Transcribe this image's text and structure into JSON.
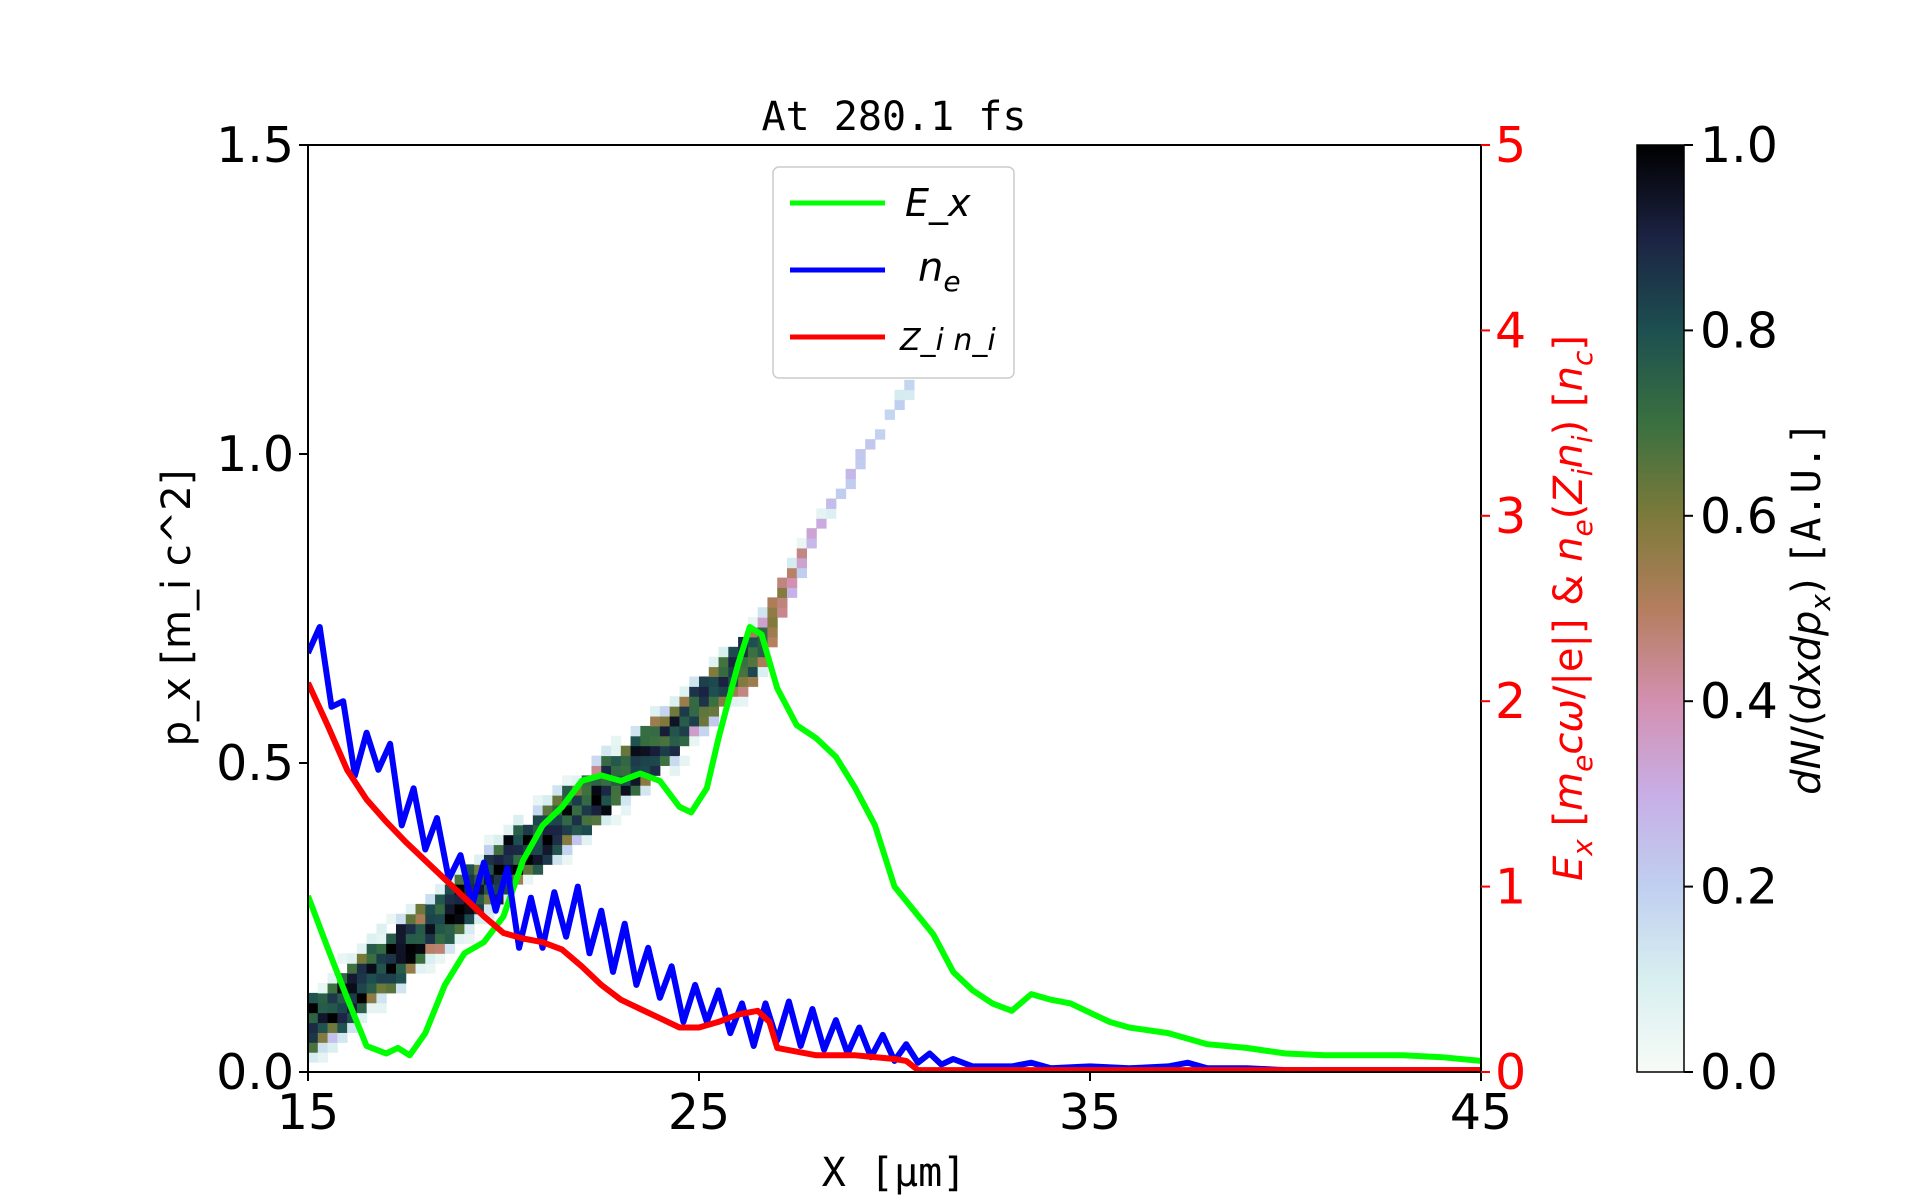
{
  "chart_data": {
    "type": "line",
    "title": "At 280.1 fs",
    "xlabel": "X [μm]",
    "ylabel_left": "p_x [m_i c^2]",
    "ylabel_right": "E_x [m_e cω/|e|] & n_e(Z_i n_i) [n_c]",
    "colorbar_label": "dN/(dxdp_x) [A.U.]",
    "xlim": [
      15,
      45
    ],
    "ylim_left": [
      0,
      1.5
    ],
    "ylim_right": [
      0,
      5
    ],
    "colorbar_lim": [
      0,
      1
    ],
    "xticks": [
      "15",
      "25",
      "35",
      "45"
    ],
    "xtick_values": [
      15,
      25,
      35,
      45
    ],
    "yticks_left": [
      "0.0",
      "0.5",
      "1.0",
      "1.5"
    ],
    "ytick_left_values": [
      0,
      0.5,
      1.0,
      1.5
    ],
    "yticks_right": [
      "0",
      "1",
      "2",
      "3",
      "4",
      "5"
    ],
    "ytick_right_values": [
      0,
      1,
      2,
      3,
      4,
      5
    ],
    "colorbar_ticks": [
      "0.0",
      "0.2",
      "0.4",
      "0.6",
      "0.8",
      "1.0"
    ],
    "colorbar_tick_values": [
      0,
      0.2,
      0.4,
      0.6,
      0.8,
      1.0
    ],
    "legend": {
      "placement": "upper-center",
      "entries": [
        "E_x",
        "n_e",
        "Z_i n_i"
      ]
    },
    "series": [
      {
        "name": "E_x",
        "color": "#00ff00",
        "axis": "right",
        "x": [
          15,
          15.5,
          16,
          16.5,
          17,
          17.3,
          17.6,
          18,
          18.5,
          19,
          19.5,
          20,
          20.5,
          21,
          21.5,
          22,
          22.5,
          23,
          23.5,
          24,
          24.5,
          24.8,
          25.2,
          25.5,
          26,
          26.3,
          26.6,
          27,
          27.5,
          28,
          28.5,
          29,
          29.5,
          30,
          30.5,
          31,
          31.5,
          32,
          32.5,
          33,
          33.5,
          34,
          34.5,
          35,
          35.5,
          36,
          37,
          38,
          39,
          40,
          41,
          42,
          43,
          44,
          45
        ],
        "y": [
          0.95,
          0.67,
          0.4,
          0.14,
          0.1,
          0.13,
          0.09,
          0.21,
          0.47,
          0.64,
          0.7,
          0.84,
          1.14,
          1.33,
          1.43,
          1.57,
          1.6,
          1.57,
          1.61,
          1.57,
          1.43,
          1.4,
          1.53,
          1.8,
          2.2,
          2.4,
          2.36,
          2.07,
          1.87,
          1.8,
          1.7,
          1.53,
          1.33,
          1.0,
          0.87,
          0.74,
          0.54,
          0.44,
          0.37,
          0.33,
          0.42,
          0.39,
          0.37,
          0.32,
          0.27,
          0.24,
          0.21,
          0.15,
          0.13,
          0.1,
          0.09,
          0.09,
          0.09,
          0.08,
          0.06
        ]
      },
      {
        "name": "n_e",
        "color": "#0000ff",
        "axis": "right",
        "x": [
          15,
          15.3,
          15.6,
          15.9,
          16.2,
          16.5,
          16.8,
          17.1,
          17.4,
          17.7,
          18,
          18.3,
          18.6,
          18.9,
          19.2,
          19.5,
          19.8,
          20.1,
          20.4,
          20.7,
          21,
          21.3,
          21.6,
          21.9,
          22.2,
          22.5,
          22.8,
          23.1,
          23.4,
          23.7,
          24,
          24.3,
          24.6,
          24.9,
          25.2,
          25.5,
          25.8,
          26.1,
          26.4,
          26.7,
          27,
          27.3,
          27.6,
          27.9,
          28.2,
          28.5,
          28.8,
          29.1,
          29.4,
          29.7,
          30,
          30.3,
          30.6,
          30.9,
          31.2,
          31.5,
          32,
          33,
          33.5,
          34,
          35,
          36,
          37,
          37.5,
          38,
          39,
          40,
          42,
          45
        ],
        "y": [
          2.26,
          2.4,
          1.97,
          2.0,
          1.6,
          1.83,
          1.63,
          1.77,
          1.33,
          1.53,
          1.2,
          1.37,
          1.04,
          1.17,
          0.9,
          1.13,
          0.87,
          1.1,
          0.67,
          0.94,
          0.67,
          0.97,
          0.73,
          1.0,
          0.64,
          0.87,
          0.54,
          0.8,
          0.47,
          0.67,
          0.4,
          0.57,
          0.27,
          0.47,
          0.27,
          0.44,
          0.21,
          0.37,
          0.14,
          0.37,
          0.17,
          0.38,
          0.14,
          0.34,
          0.12,
          0.28,
          0.1,
          0.24,
          0.08,
          0.2,
          0.06,
          0.15,
          0.05,
          0.1,
          0.04,
          0.07,
          0.03,
          0.03,
          0.05,
          0.02,
          0.03,
          0.02,
          0.03,
          0.05,
          0.02,
          0.02,
          0.01,
          0.01,
          0.01
        ]
      },
      {
        "name": "Z_i n_i",
        "color": "#ff0000",
        "axis": "right",
        "x": [
          15,
          15.5,
          16,
          16.5,
          17,
          17.5,
          18,
          18.5,
          19,
          19.5,
          20,
          20.5,
          21,
          21.5,
          22,
          22.5,
          23,
          23.5,
          24,
          24.5,
          25,
          25.5,
          26,
          26.5,
          26.8,
          27,
          28,
          29,
          30,
          30.3,
          30.6,
          31,
          35,
          40,
          45
        ],
        "y": [
          2.1,
          1.87,
          1.63,
          1.47,
          1.35,
          1.24,
          1.14,
          1.04,
          0.94,
          0.84,
          0.75,
          0.72,
          0.7,
          0.66,
          0.57,
          0.47,
          0.39,
          0.34,
          0.29,
          0.24,
          0.24,
          0.27,
          0.31,
          0.33,
          0.27,
          0.13,
          0.09,
          0.09,
          0.07,
          0.06,
          0.01,
          0.01,
          0.01,
          0.01,
          0.01
        ]
      }
    ],
    "phase_space": {
      "type": "heatmap",
      "axis": "left",
      "spine_x": [
        15,
        20,
        24,
        26.5,
        28,
        30.5
      ],
      "spine_px": [
        0.07,
        0.33,
        0.53,
        0.68,
        0.88,
        1.12
      ],
      "spine_intensity": [
        0.95,
        0.95,
        0.9,
        0.8,
        0.3,
        0.2
      ],
      "spine_halfwidth_px": [
        0.045,
        0.045,
        0.045,
        0.04,
        0.015,
        0.012
      ]
    },
    "colormap": [
      "#f7fbf7",
      "#d8eff0",
      "#c0cff0",
      "#c8aee6",
      "#d390b0",
      "#b47e5e",
      "#7c7a3a",
      "#3a7040",
      "#1d4f50",
      "#1c2343",
      "#000000"
    ]
  }
}
